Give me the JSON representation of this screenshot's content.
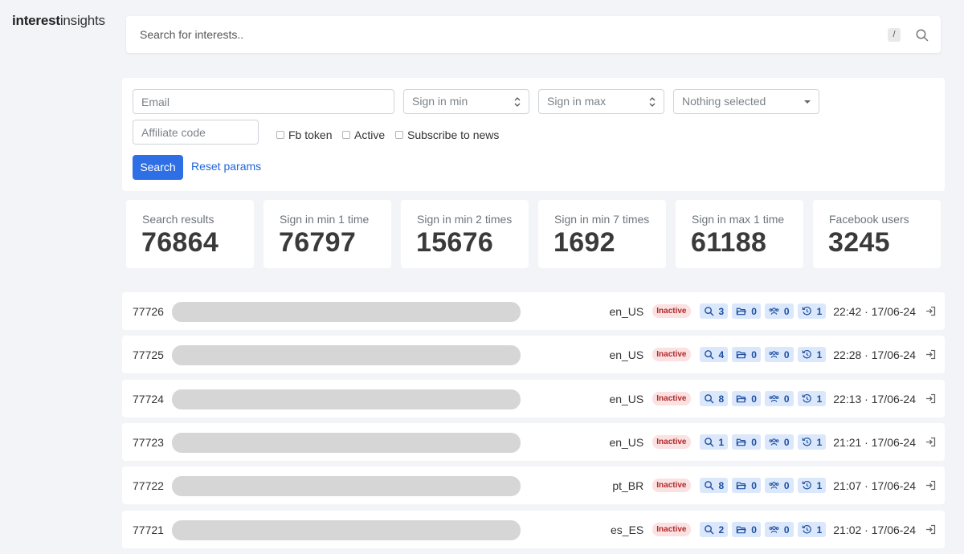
{
  "brand": {
    "bold": "interest",
    "light": "insights"
  },
  "search": {
    "placeholder": "Search for interests..",
    "shortcut": "/"
  },
  "filters": {
    "email_placeholder": "Email",
    "sign_in_min_placeholder": "Sign in min",
    "sign_in_max_placeholder": "Sign in max",
    "select_value": "Nothing selected",
    "affiliate_placeholder": "Affiliate code",
    "checkboxes": {
      "fb_token": "Fb token",
      "active": "Active",
      "subscribe": "Subscribe to news"
    },
    "search_button": "Search",
    "reset_link": "Reset params"
  },
  "stats": [
    {
      "label": "Search results",
      "value": "76864"
    },
    {
      "label": "Sign in min 1 time",
      "value": "76797"
    },
    {
      "label": "Sign in min 2 times",
      "value": "15676"
    },
    {
      "label": "Sign in min 7 times",
      "value": "1692"
    },
    {
      "label": "Sign in max 1 time",
      "value": "61188"
    },
    {
      "label": "Facebook users",
      "value": "3245"
    }
  ],
  "rows": [
    {
      "id": "77726",
      "locale": "en_US",
      "status": "Inactive",
      "searches": "3",
      "folders": "0",
      "groups": "0",
      "history": "1",
      "time": "22:42 · 17/06-24"
    },
    {
      "id": "77725",
      "locale": "en_US",
      "status": "Inactive",
      "searches": "4",
      "folders": "0",
      "groups": "0",
      "history": "1",
      "time": "22:28 · 17/06-24"
    },
    {
      "id": "77724",
      "locale": "en_US",
      "status": "Inactive",
      "searches": "8",
      "folders": "0",
      "groups": "0",
      "history": "1",
      "time": "22:13 · 17/06-24"
    },
    {
      "id": "77723",
      "locale": "en_US",
      "status": "Inactive",
      "searches": "1",
      "folders": "0",
      "groups": "0",
      "history": "1",
      "time": "21:21 · 17/06-24"
    },
    {
      "id": "77722",
      "locale": "pt_BR",
      "status": "Inactive",
      "searches": "8",
      "folders": "0",
      "groups": "0",
      "history": "1",
      "time": "21:07 · 17/06-24"
    },
    {
      "id": "77721",
      "locale": "es_ES",
      "status": "Inactive",
      "searches": "2",
      "folders": "0",
      "groups": "0",
      "history": "1",
      "time": "21:02 · 17/06-24"
    }
  ],
  "colors": {
    "primary": "#2f6fe6",
    "badge_bg": "#fbe1e1",
    "badge_text": "#b12a2a",
    "count_bg": "#dbe7fb"
  }
}
